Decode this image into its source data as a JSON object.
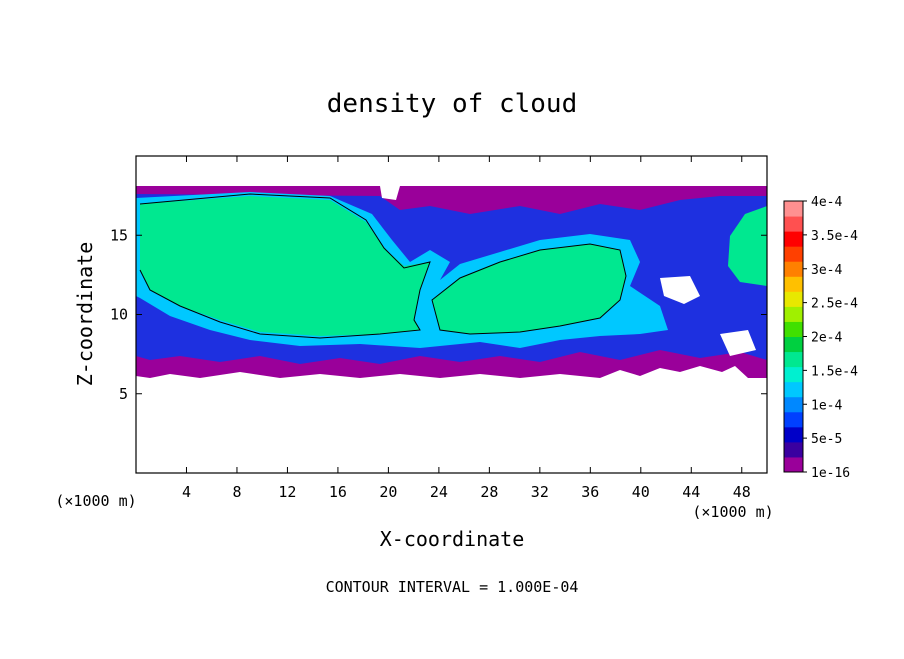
{
  "chart_data": {
    "type": "heatmap",
    "title": "density of cloud",
    "xlabel": "X-coordinate",
    "ylabel": "Z-coordinate",
    "x_unit": "(×1000 m)",
    "y_unit": "(×1000 m)",
    "xlim": [
      0,
      50
    ],
    "ylim": [
      0,
      20
    ],
    "x_ticks": [
      "4",
      "8",
      "12",
      "16",
      "20",
      "24",
      "28",
      "32",
      "36",
      "40",
      "44",
      "48"
    ],
    "y_ticks": [
      "5",
      "10",
      "15"
    ],
    "x_tick_values": [
      4,
      8,
      12,
      16,
      20,
      24,
      28,
      32,
      36,
      40,
      44,
      48
    ],
    "y_tick_values": [
      5,
      10,
      15
    ],
    "footnote": "CONTOUR INTERVAL = 1.000E-04",
    "colorbar": {
      "labels": [
        "4e-4",
        "3.5e-4",
        "3e-4",
        "2.5e-4",
        "2e-4",
        "1.5e-4",
        "1e-4",
        "5e-5",
        "1e-16"
      ],
      "label_values": [
        0.0004,
        0.00035,
        0.0003,
        0.00025,
        0.0002,
        0.00015,
        0.0001,
        5e-05,
        1e-16
      ],
      "colors": [
        "#9a009a",
        "#3a00a0",
        "#0000c8",
        "#0040ff",
        "#0088ff",
        "#00c8ff",
        "#00f0d0",
        "#00e890",
        "#00d040",
        "#40e000",
        "#a0f000",
        "#e8e800",
        "#ffc000",
        "#ff8000",
        "#ff4000",
        "#ff0000",
        "#ff5050",
        "#ff9090"
      ]
    },
    "cloud_region": {
      "z_bottom_approx": 6.2,
      "z_top_approx": 18.0
    },
    "legend_position": "right",
    "grid": false
  }
}
